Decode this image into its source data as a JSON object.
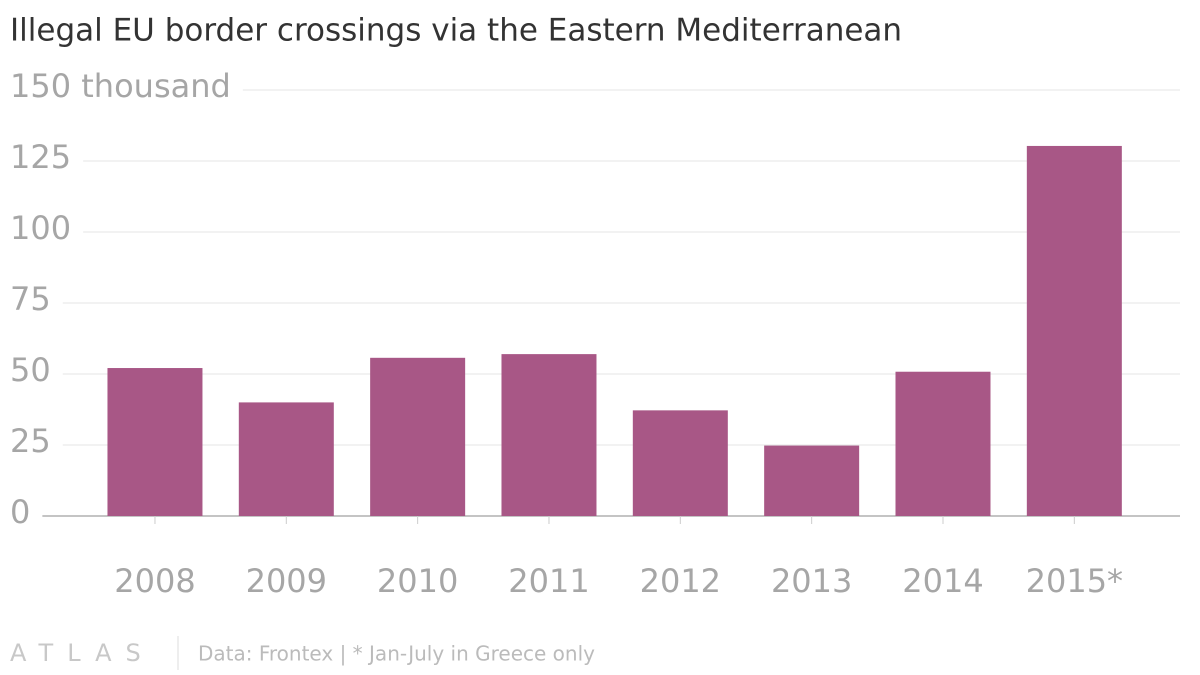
{
  "chart_data": {
    "type": "bar",
    "title": "Illegal EU border crossings via the Eastern Mediterranean",
    "categories": [
      "2008",
      "2009",
      "2010",
      "2011",
      "2012",
      "2013",
      "2014",
      "2015*"
    ],
    "values": [
      52.1,
      40,
      55.7,
      57,
      37.2,
      24.8,
      50.8,
      130.3
    ],
    "color": "#a85786",
    "ylim": [
      0,
      150
    ],
    "yticks": [
      0,
      25,
      50,
      75,
      100,
      125,
      {
        "value": 150,
        "label": "150 thousand"
      }
    ],
    "grid": true,
    "brand": "ATLAS",
    "source": "Data: Frontex | * Jan-July in Greece only"
  }
}
